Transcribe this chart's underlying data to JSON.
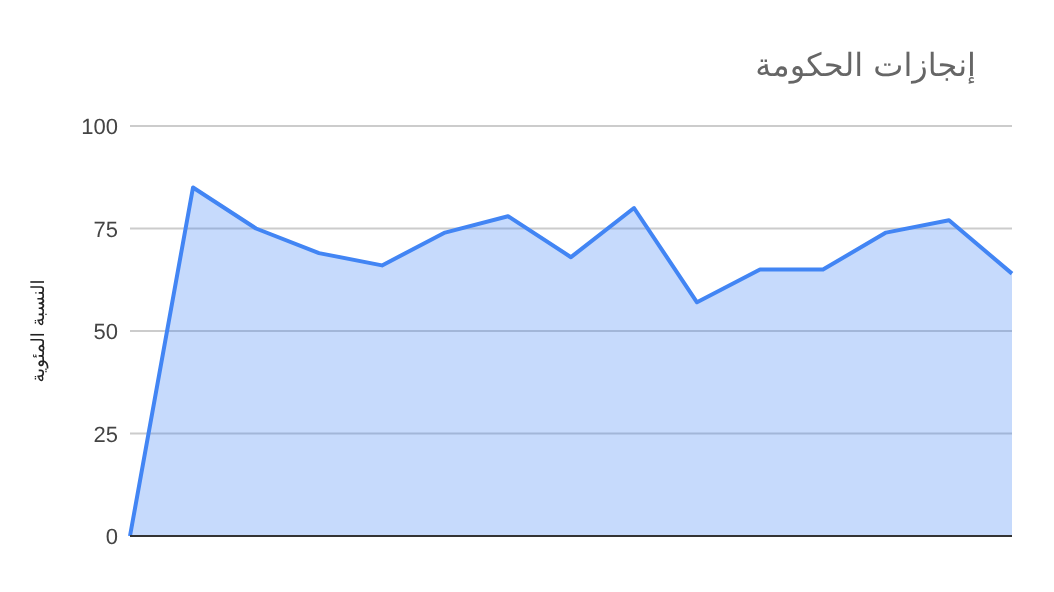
{
  "chart_data": {
    "type": "area",
    "title": "إنجازات الحكومة",
    "ylabel": "النسبة المئوية",
    "categories": [
      null,
      null,
      null,
      null,
      null,
      null,
      null,
      null,
      null,
      null,
      null,
      null,
      null,
      null,
      null
    ],
    "values": [
      0,
      85,
      75,
      69,
      66,
      74,
      78,
      68,
      80,
      57,
      65,
      65,
      74,
      77,
      64
    ],
    "color": "#4285f4",
    "ylim": [
      0,
      100
    ],
    "yticks": [
      0,
      25,
      50,
      75,
      100
    ],
    "grid": "y"
  }
}
